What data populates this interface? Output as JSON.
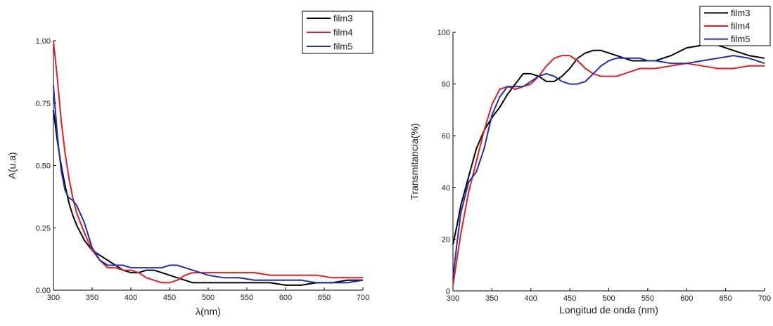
{
  "chart_data": [
    {
      "type": "line",
      "title": "",
      "xlabel": "λ(nm)",
      "ylabel": "A(u.a)",
      "xlim": [
        300,
        700
      ],
      "ylim": [
        0,
        1.0
      ],
      "x_ticks": [
        300,
        350,
        400,
        450,
        500,
        550,
        600,
        650,
        700
      ],
      "y_ticks": [
        0.0,
        0.25,
        0.5,
        0.75,
        1.0
      ],
      "y_tick_labels": [
        "0.00",
        "0.25",
        "0.50",
        "0.75",
        "1.00"
      ],
      "grid": false,
      "legend_position": "top-right",
      "series": [
        {
          "name": "film3",
          "color": "#000000",
          "x": [
            300,
            305,
            310,
            315,
            320,
            325,
            330,
            340,
            350,
            360,
            370,
            380,
            390,
            400,
            410,
            420,
            430,
            440,
            450,
            460,
            470,
            480,
            490,
            500,
            520,
            540,
            560,
            580,
            600,
            620,
            640,
            660,
            680,
            700
          ],
          "y": [
            0.72,
            0.6,
            0.5,
            0.42,
            0.35,
            0.3,
            0.26,
            0.2,
            0.16,
            0.14,
            0.12,
            0.1,
            0.08,
            0.07,
            0.07,
            0.08,
            0.08,
            0.07,
            0.06,
            0.05,
            0.04,
            0.03,
            0.03,
            0.03,
            0.03,
            0.03,
            0.03,
            0.03,
            0.02,
            0.02,
            0.03,
            0.03,
            0.04,
            0.04
          ]
        },
        {
          "name": "film4",
          "color": "#e02020",
          "x": [
            300,
            305,
            310,
            315,
            320,
            325,
            330,
            340,
            350,
            360,
            370,
            380,
            390,
            400,
            410,
            420,
            430,
            440,
            450,
            460,
            470,
            480,
            490,
            500,
            520,
            540,
            560,
            580,
            600,
            620,
            640,
            660,
            680,
            700
          ],
          "y": [
            1.0,
            0.85,
            0.68,
            0.55,
            0.45,
            0.37,
            0.31,
            0.23,
            0.16,
            0.12,
            0.09,
            0.09,
            0.08,
            0.08,
            0.07,
            0.05,
            0.04,
            0.03,
            0.03,
            0.04,
            0.06,
            0.07,
            0.07,
            0.07,
            0.07,
            0.07,
            0.07,
            0.06,
            0.06,
            0.06,
            0.06,
            0.05,
            0.05,
            0.05
          ]
        },
        {
          "name": "film5",
          "color": "#1f2fb0",
          "x": [
            300,
            305,
            310,
            315,
            320,
            325,
            330,
            340,
            350,
            360,
            370,
            380,
            390,
            400,
            410,
            420,
            430,
            440,
            450,
            460,
            470,
            480,
            490,
            500,
            520,
            540,
            560,
            580,
            600,
            620,
            640,
            660,
            680,
            700
          ],
          "y": [
            0.82,
            0.62,
            0.48,
            0.4,
            0.37,
            0.36,
            0.34,
            0.27,
            0.17,
            0.12,
            0.1,
            0.1,
            0.1,
            0.09,
            0.09,
            0.09,
            0.09,
            0.09,
            0.1,
            0.1,
            0.09,
            0.08,
            0.07,
            0.06,
            0.05,
            0.05,
            0.04,
            0.04,
            0.04,
            0.04,
            0.03,
            0.03,
            0.03,
            0.04
          ]
        }
      ]
    },
    {
      "type": "line",
      "title": "",
      "xlabel": "Longitud de onda (nm)",
      "ylabel": "Transmitancia(%)",
      "xlim": [
        300,
        700
      ],
      "ylim": [
        0,
        100
      ],
      "x_ticks": [
        300,
        350,
        400,
        450,
        500,
        550,
        600,
        650,
        700
      ],
      "y_ticks": [
        0,
        20,
        40,
        60,
        80,
        100
      ],
      "y_tick_labels": [
        "0",
        "20",
        "40",
        "60",
        "80",
        "100"
      ],
      "grid": false,
      "legend_position": "top-right",
      "series": [
        {
          "name": "film3",
          "color": "#000000",
          "x": [
            300,
            305,
            310,
            320,
            330,
            340,
            350,
            360,
            370,
            380,
            390,
            400,
            410,
            420,
            430,
            440,
            450,
            460,
            470,
            480,
            490,
            500,
            510,
            520,
            530,
            540,
            550,
            560,
            580,
            600,
            620,
            640,
            660,
            680,
            700
          ],
          "y": [
            18,
            25,
            33,
            44,
            55,
            62,
            67,
            71,
            76,
            80,
            84,
            84,
            83,
            81,
            81,
            83,
            86,
            90,
            92,
            93,
            93,
            92,
            91,
            90,
            89,
            89,
            89,
            89,
            91,
            94,
            95,
            95,
            93,
            91,
            90
          ]
        },
        {
          "name": "film4",
          "color": "#e02020",
          "x": [
            300,
            305,
            310,
            320,
            330,
            340,
            350,
            360,
            370,
            380,
            390,
            400,
            410,
            420,
            430,
            440,
            450,
            460,
            470,
            480,
            490,
            500,
            510,
            520,
            530,
            540,
            550,
            560,
            580,
            600,
            620,
            640,
            660,
            680,
            700
          ],
          "y": [
            2,
            12,
            22,
            38,
            50,
            62,
            72,
            78,
            79,
            78,
            79,
            80,
            83,
            87,
            90,
            91,
            91,
            89,
            86,
            84,
            83,
            83,
            83,
            84,
            85,
            86,
            86,
            86,
            87,
            88,
            87,
            86,
            86,
            87,
            87
          ]
        },
        {
          "name": "film5",
          "color": "#1f2fb0",
          "x": [
            300,
            305,
            310,
            320,
            330,
            340,
            350,
            360,
            370,
            380,
            390,
            400,
            410,
            420,
            430,
            440,
            450,
            460,
            470,
            480,
            490,
            500,
            510,
            520,
            530,
            540,
            550,
            560,
            580,
            600,
            620,
            640,
            660,
            680,
            700
          ],
          "y": [
            5,
            18,
            30,
            42,
            46,
            55,
            68,
            75,
            79,
            79,
            79,
            81,
            83,
            84,
            83,
            81,
            80,
            80,
            81,
            84,
            87,
            89,
            90,
            90,
            90,
            90,
            89,
            89,
            88,
            88,
            89,
            90,
            91,
            90,
            88
          ]
        }
      ]
    }
  ]
}
